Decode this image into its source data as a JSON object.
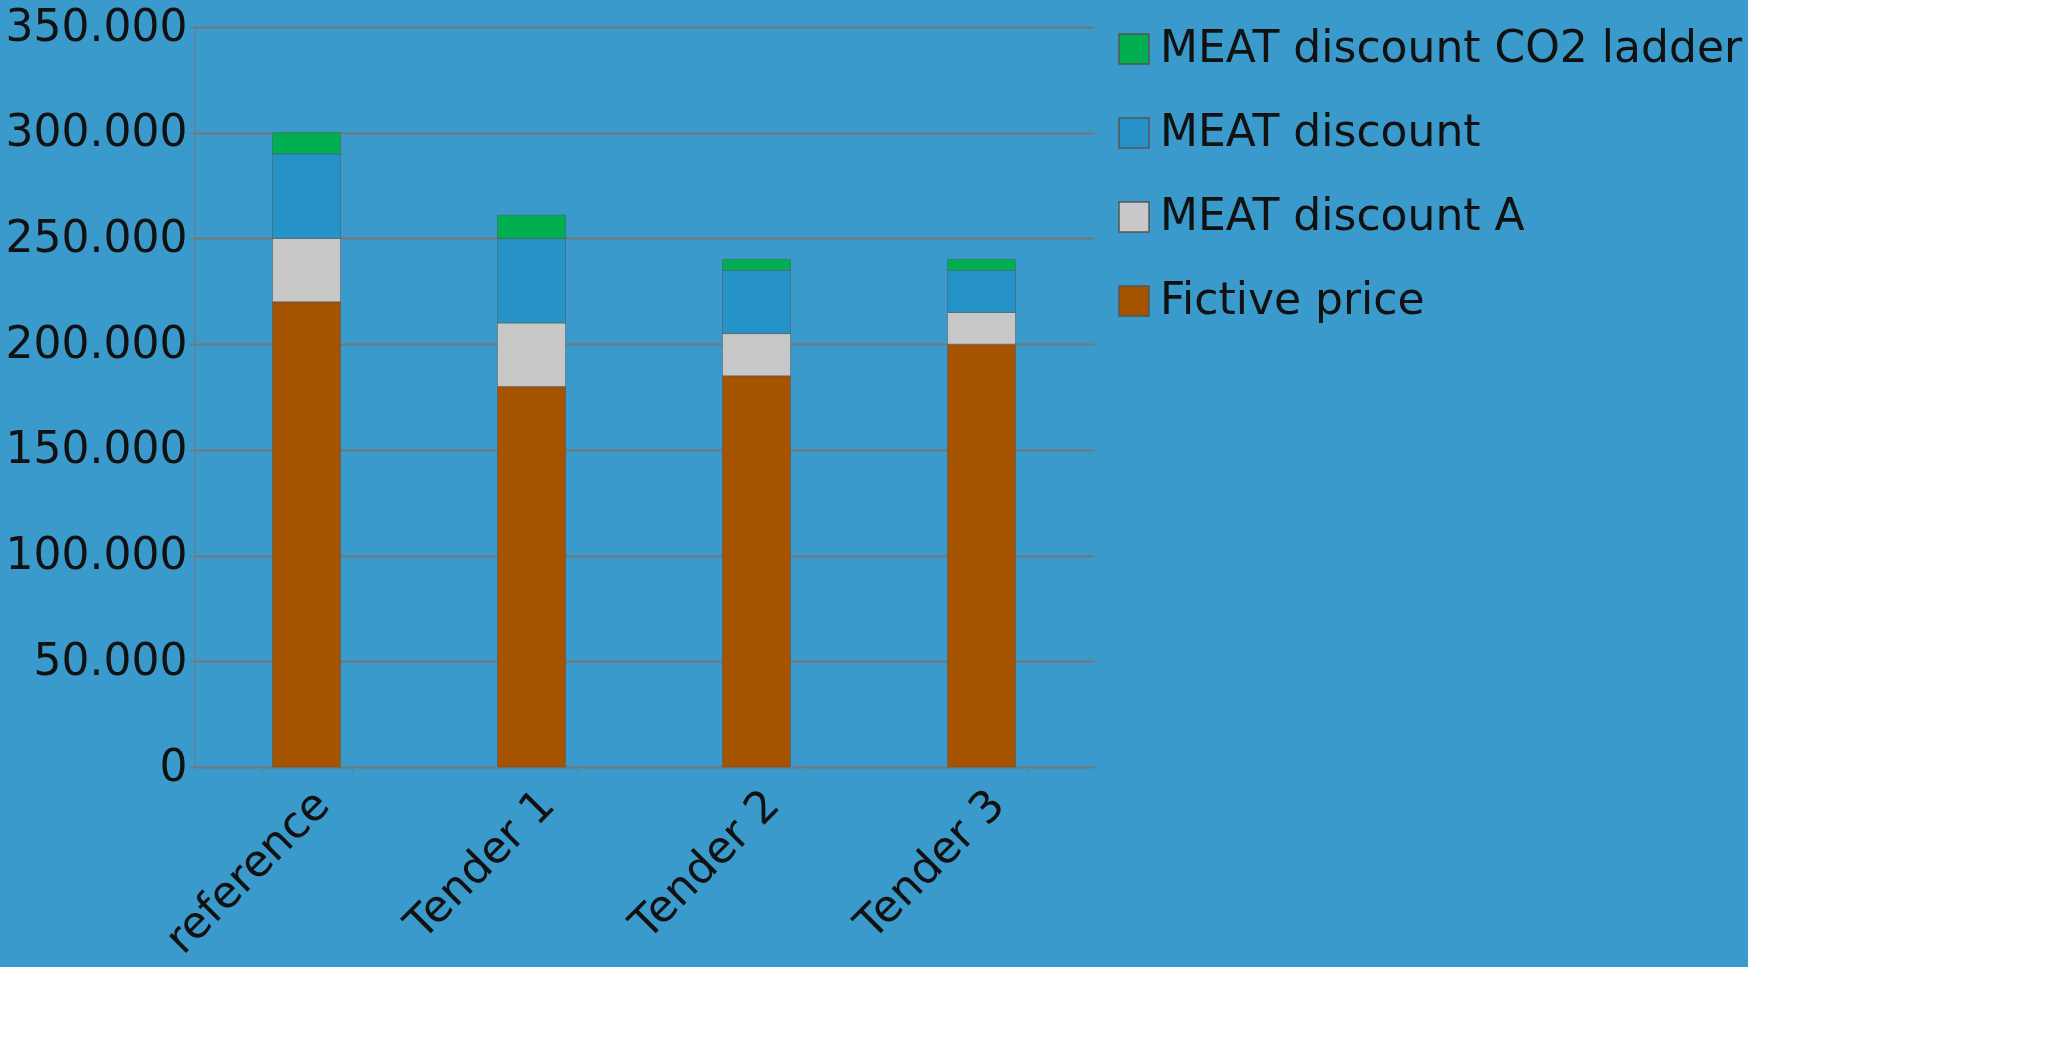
{
  "chart_data": {
    "type": "bar",
    "stacked": true,
    "categories": [
      "reference",
      "Tender 1",
      "Tender 2",
      "Tender 3"
    ],
    "series": [
      {
        "name": "Fictive price",
        "color": "#a65300",
        "values": [
          220000,
          180000,
          185000,
          200000
        ]
      },
      {
        "name": "MEAT discount A",
        "color": "#c8c8c8",
        "values": [
          30000,
          30000,
          20000,
          15000
        ]
      },
      {
        "name": "MEAT discount",
        "color": "#2592c8",
        "values": [
          40000,
          40000,
          30000,
          20000
        ]
      },
      {
        "name": "MEAT discount CO2 ladder",
        "color": "#00b050",
        "values": [
          10000,
          11000,
          5000,
          5000
        ]
      }
    ],
    "ylim": [
      0,
      350000
    ],
    "yticks": [
      {
        "value": 0,
        "label": "0"
      },
      {
        "value": 50000,
        "label": "50.000"
      },
      {
        "value": 100000,
        "label": "100.000"
      },
      {
        "value": 150000,
        "label": "150.000"
      },
      {
        "value": 200000,
        "label": "200.000"
      },
      {
        "value": 250000,
        "label": "250.000"
      },
      {
        "value": 300000,
        "label": "300.000"
      },
      {
        "value": 350000,
        "label": "350.000"
      }
    ],
    "grid": "y",
    "legend": "right"
  }
}
